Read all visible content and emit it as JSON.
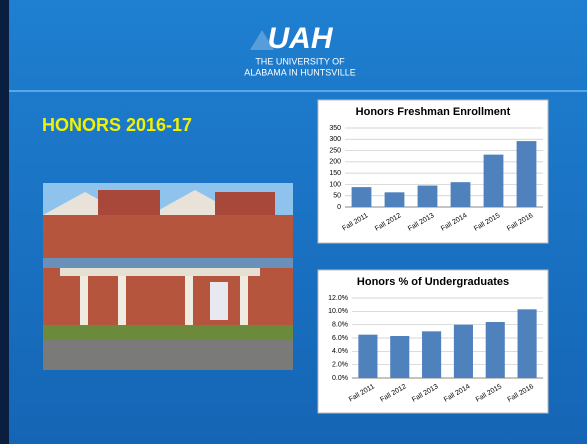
{
  "header": {
    "logo": "UAH",
    "line1": "THE UNIVERSITY OF",
    "line2": "ALABAMA IN HUNTSVILLE"
  },
  "title": "HONORS 2016-17",
  "chart_data": [
    {
      "type": "bar",
      "title": "Honors Freshman Enrollment",
      "categories": [
        "Fall 2011",
        "Fall 2012",
        "Fall 2013",
        "Fall 2014",
        "Fall 2015",
        "Fall 2016"
      ],
      "values": [
        88,
        65,
        95,
        110,
        232,
        292
      ],
      "color": "#4f81bd",
      "ylim": [
        0,
        350
      ],
      "yticks": [
        0,
        50,
        100,
        150,
        200,
        250,
        300,
        350
      ],
      "grid": true
    },
    {
      "type": "bar",
      "title": "Honors % of Undergraduates",
      "categories": [
        "Fall 2011",
        "Fall 2012",
        "Fall 2013",
        "Fall 2014",
        "Fall 2015",
        "Fall 2016"
      ],
      "values": [
        6.5,
        6.3,
        7.0,
        8.0,
        8.4,
        10.3
      ],
      "color": "#4f81bd",
      "ylim": [
        0,
        12
      ],
      "yticks": [
        {
          "value": 0,
          "label": "0.0%"
        },
        {
          "value": 2,
          "label": "2.0%"
        },
        {
          "value": 4,
          "label": "4.0%"
        },
        {
          "value": 6,
          "label": "6.0%"
        },
        {
          "value": 8,
          "label": "8.0%"
        },
        {
          "value": 10,
          "label": "10.0%"
        },
        {
          "value": 12,
          "label": "12.0%"
        }
      ],
      "grid": true
    }
  ]
}
